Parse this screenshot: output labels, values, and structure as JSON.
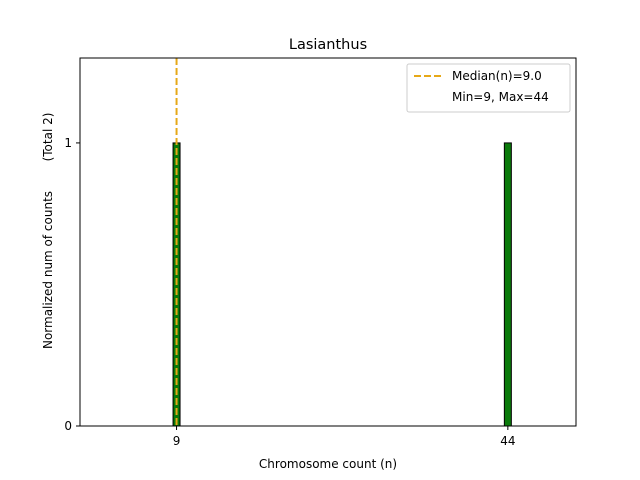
{
  "chart_data": {
    "type": "bar",
    "title": "Lasianthus",
    "xlabel": "Chromosome count (n)",
    "ylabel": "Normalized num of counts",
    "ylabel_note": "(Total 2)",
    "x": [
      9,
      44
    ],
    "values": [
      1,
      1
    ],
    "xticks": [
      "9",
      "44"
    ],
    "yticks": [
      "0",
      "1"
    ],
    "xlim": [
      -1.2,
      51.2
    ],
    "ylim": [
      0,
      1.3
    ],
    "bar_color": "#0a7a0a",
    "bar_edge_color": "#000000",
    "median": 9.0,
    "median_color": "#e6a817",
    "legend": {
      "placement": "top-right",
      "entries": [
        "Median(n)=9.0",
        "Min=9, Max=44"
      ]
    },
    "grid": false
  }
}
